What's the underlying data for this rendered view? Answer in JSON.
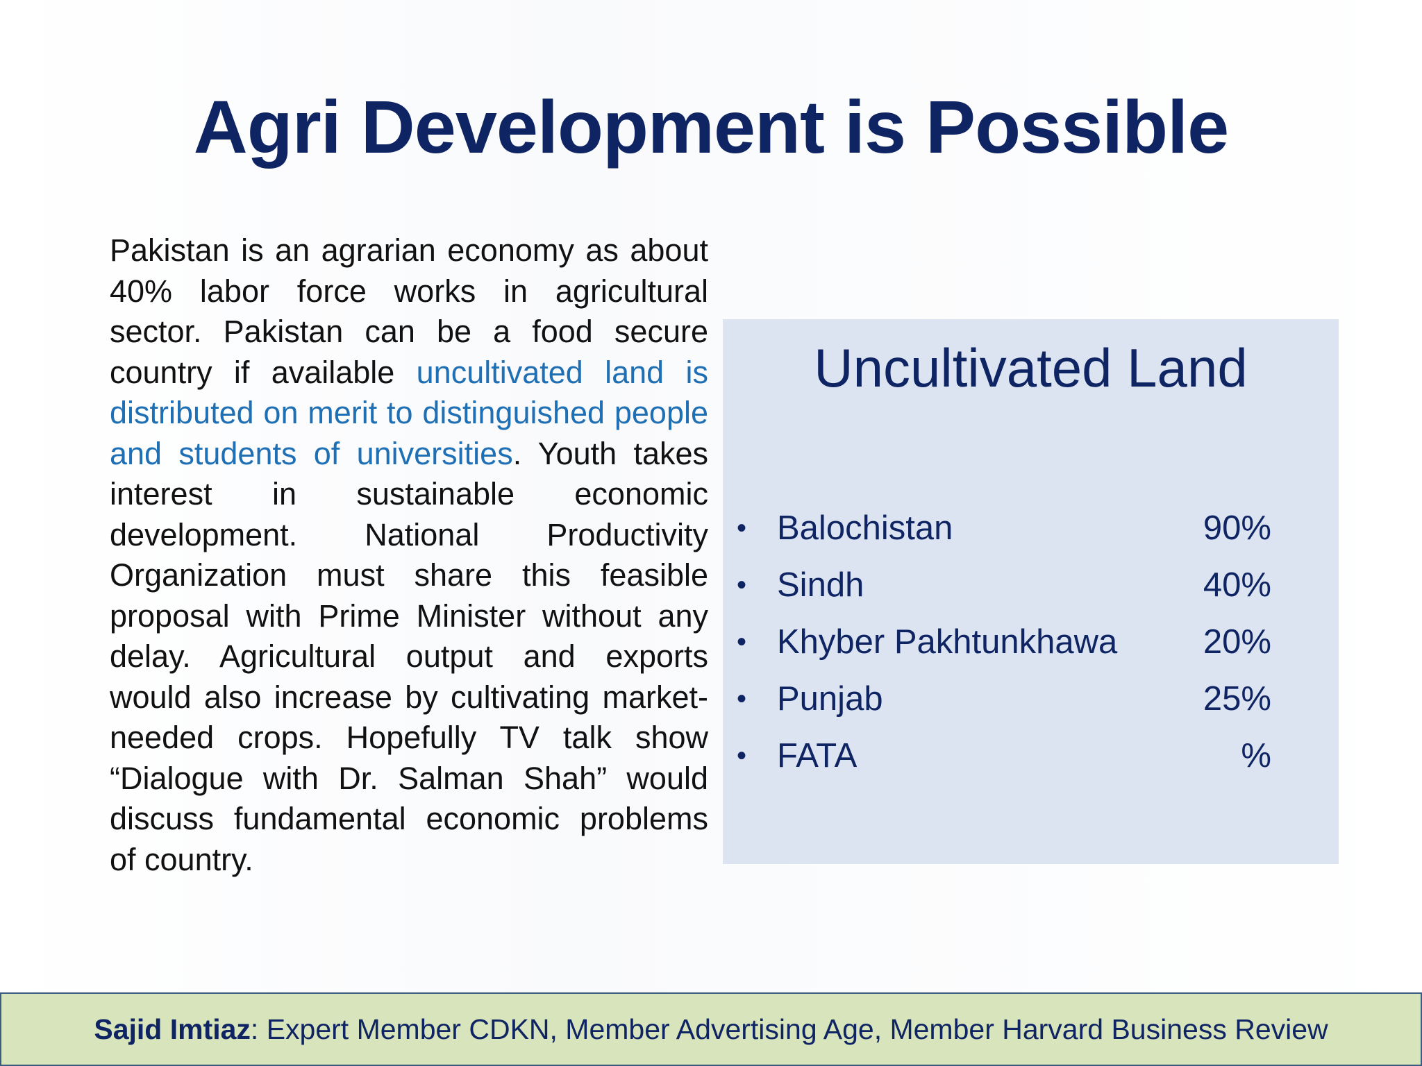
{
  "title": "Agri Development is Possible",
  "body": {
    "text_before": "Pakistan is an agrarian economy as about 40% labor force works in agricultural sector. Pakistan can be a food secure country if available ",
    "highlight": "uncultivated land is distributed on merit to distinguished people and students of universities",
    "text_after": ". Youth takes interest in sustainable economic development. National Productivity Organization must share this feasible proposal with Prime Minister without any delay. Agricultural output and exports would also increase by cultivating market-needed crops. Hopefully TV talk show “Dialogue with Dr. Salman Shah” would discuss fundamental economic problems of country."
  },
  "land": {
    "title": "Uncultivated Land",
    "bullet": "•",
    "items": [
      {
        "region": "Balochistan",
        "percent": "90%"
      },
      {
        "region": "Sindh",
        "percent": "40%"
      },
      {
        "region": "Khyber Pakhtunkhawa",
        "percent": "20%"
      },
      {
        "region": "Punjab",
        "percent": "25%"
      },
      {
        "region": "FATA",
        "percent": "%"
      }
    ]
  },
  "footer": {
    "author": "Sajid Imtiaz",
    "details": ": Expert Member CDKN, Member Advertising Age, Member Harvard Business Review"
  },
  "colors": {
    "title": "#0f2462",
    "highlight": "#1f6fb5",
    "box": "#dce4f2",
    "footer": "#d8e4bc"
  }
}
